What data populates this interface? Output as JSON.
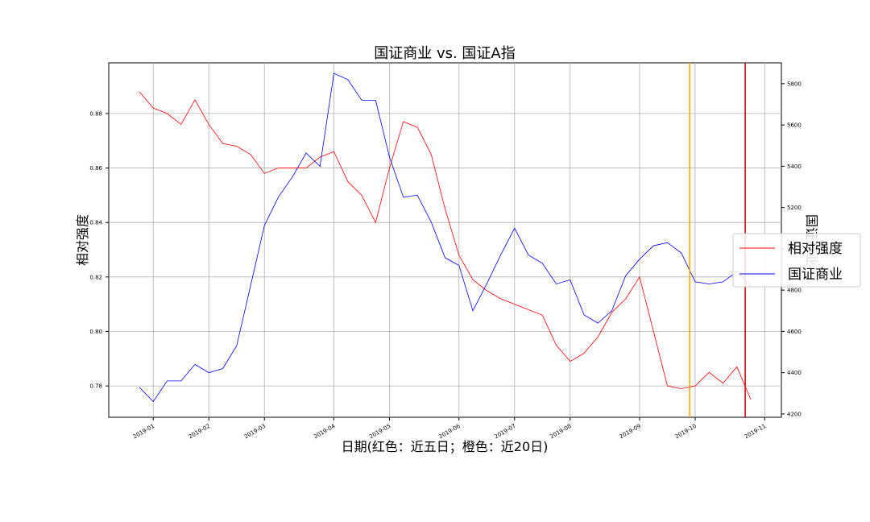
{
  "chart_data": {
    "type": "line",
    "title": "国证商业 vs. 国证A指",
    "xlabel": "日期(红色：近五日；橙色：近20日)",
    "ylabel": "相对强度",
    "y2label": "国证商业",
    "categories": [
      null,
      "2019-01",
      null,
      null,
      null,
      "2019-02",
      null,
      null,
      null,
      "2019-03",
      null,
      null,
      null,
      null,
      "2019-04",
      null,
      null,
      null,
      "2019-05",
      null,
      null,
      null,
      null,
      "2019-06",
      null,
      null,
      null,
      "2019-07",
      null,
      null,
      null,
      "2019-08",
      null,
      null,
      null,
      null,
      "2019-09",
      null,
      null,
      null,
      "2019-10",
      null,
      null,
      null,
      null,
      "2019-11"
    ],
    "series": [
      {
        "name": "相对强度",
        "color": "#ff0000",
        "axis": "y",
        "values": [
          0.888,
          0.882,
          0.88,
          0.876,
          0.885,
          0.876,
          0.869,
          0.868,
          0.865,
          0.858,
          0.86,
          0.86,
          0.86,
          0.864,
          0.866,
          0.855,
          0.85,
          0.84,
          0.86,
          0.877,
          0.875,
          0.865,
          0.845,
          0.828,
          0.819,
          0.815,
          0.812,
          0.81,
          0.808,
          0.806,
          0.795,
          0.789,
          0.792,
          0.798,
          0.807,
          0.812,
          0.82,
          0.8,
          0.78,
          0.779,
          0.78,
          0.785,
          0.781,
          0.787,
          0.775,
          null
        ]
      },
      {
        "name": "国证商业",
        "color": "#0000ff",
        "axis": "y2",
        "values": [
          4329,
          4260,
          4360,
          4360,
          4440,
          4400,
          4420,
          4530,
          4820,
          5113,
          5250,
          5347,
          5464,
          5400,
          5850,
          5820,
          5720,
          5720,
          5445,
          5250,
          5260,
          5130,
          4957,
          4920,
          4700,
          4830,
          4970,
          5100,
          4970,
          4930,
          4830,
          4850,
          4680,
          4640,
          4700,
          4870,
          4950,
          5015,
          5030,
          4980,
          4840,
          4830,
          4840,
          4890,
          4820,
          null
        ]
      }
    ],
    "ylim": [
      0.7685,
      0.8986
    ],
    "yticks": [
      0.78,
      {
        "value": 0.8,
        "label": "0.80"
      },
      0.82,
      0.84,
      0.86,
      0.88
    ],
    "y2lim": [
      4184,
      5901
    ],
    "y2ticks": [
      4200,
      4400,
      4600,
      4800,
      5000,
      5200,
      5400,
      5600,
      5800
    ],
    "grid": true,
    "legend": "right",
    "vlines": [
      {
        "x_index": 39.6,
        "color": "#ffa500"
      },
      {
        "x_index": 43.6,
        "color": "#c00000"
      }
    ]
  }
}
